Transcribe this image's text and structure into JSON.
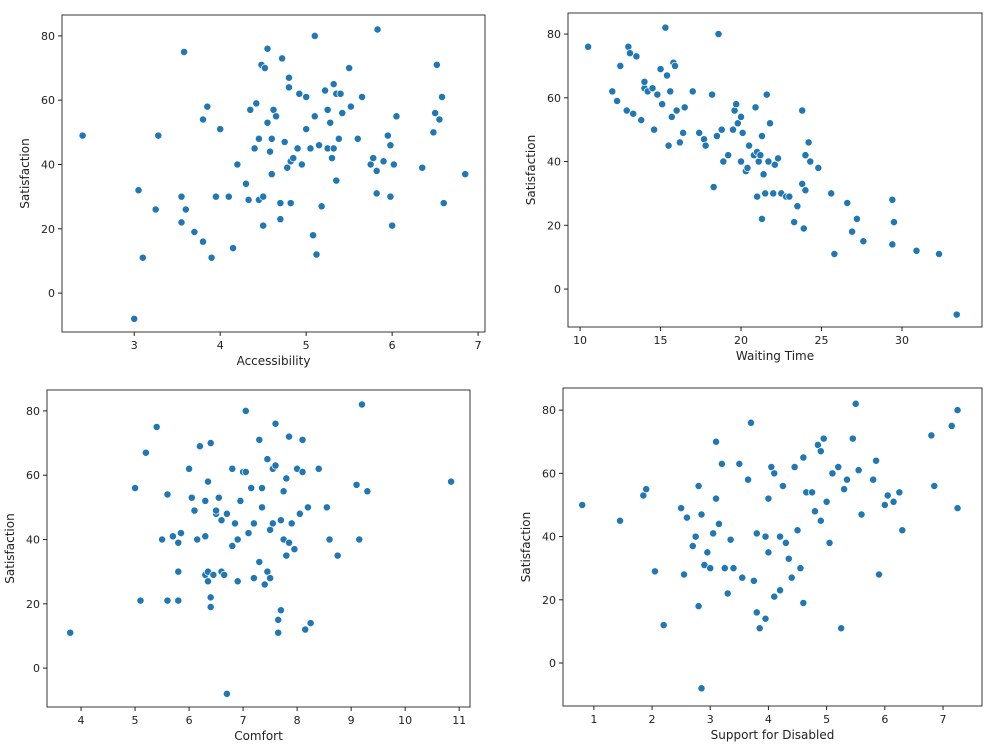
{
  "chart_data": [
    {
      "type": "scatter",
      "xlabel": "Accessibility",
      "ylabel": "Satisfaction",
      "color": "#1f77b4",
      "xlim": [
        2.16,
        7.08
      ],
      "ylim": [
        -12.1,
        86.5
      ],
      "xticks": [
        3,
        4,
        5,
        6,
        7
      ],
      "yticks": [
        0,
        20,
        40,
        60,
        80
      ],
      "x": [
        2.4,
        3.0,
        3.05,
        3.1,
        3.25,
        3.28,
        3.55,
        3.55,
        3.6,
        3.58,
        3.7,
        3.8,
        3.8,
        3.85,
        3.9,
        3.95,
        4.0,
        4.1,
        4.15,
        4.2,
        4.3,
        4.33,
        4.35,
        4.4,
        4.42,
        4.45,
        4.45,
        4.48,
        4.5,
        4.5,
        4.52,
        4.55,
        4.55,
        4.58,
        4.6,
        4.6,
        4.62,
        4.65,
        4.7,
        4.7,
        4.72,
        4.75,
        4.78,
        4.8,
        4.8,
        4.82,
        4.82,
        4.85,
        4.9,
        4.92,
        4.95,
        5.0,
        5.0,
        5.05,
        5.08,
        5.1,
        5.1,
        5.12,
        5.15,
        5.18,
        5.22,
        5.25,
        5.25,
        5.28,
        5.3,
        5.32,
        5.32,
        5.35,
        5.35,
        5.38,
        5.4,
        5.42,
        5.5,
        5.52,
        5.6,
        5.65,
        5.75,
        5.78,
        5.82,
        5.82,
        5.83,
        5.9,
        5.95,
        5.98,
        5.98,
        6.0,
        6.02,
        6.05,
        6.35,
        6.48,
        6.5,
        6.52,
        6.55,
        6.58,
        6.6,
        6.85
      ],
      "values": [
        49,
        -8,
        32,
        11,
        26,
        49,
        30,
        22,
        26,
        75,
        19,
        16,
        54,
        58,
        11,
        30,
        51,
        30,
        14,
        40,
        34,
        29,
        57,
        45,
        59,
        29,
        48,
        71,
        30,
        21,
        70,
        76,
        53,
        44,
        48,
        37,
        57,
        55,
        23,
        28,
        73,
        47,
        39,
        64,
        67,
        41,
        28,
        42,
        45,
        62,
        40,
        51,
        61,
        45,
        18,
        80,
        55,
        12,
        46,
        27,
        63,
        45,
        57,
        53,
        42,
        45,
        65,
        62,
        35,
        48,
        62,
        56,
        70,
        58,
        48,
        61,
        40,
        42,
        31,
        38,
        82,
        41,
        49,
        46,
        30,
        21,
        40,
        55,
        39,
        50,
        56,
        71,
        54,
        61,
        28,
        37
      ]
    },
    {
      "type": "scatter",
      "xlabel": "Waiting Time",
      "ylabel": "Satisfaction",
      "color": "#1f77b4",
      "xlim": [
        9.25,
        34.97
      ],
      "ylim": [
        -11.9,
        86.6
      ],
      "xticks": [
        10,
        15,
        20,
        25,
        30
      ],
      "yticks": [
        0,
        20,
        40,
        60,
        80
      ],
      "x": [
        10.5,
        12,
        12.3,
        12.5,
        12.9,
        13,
        13.1,
        13.3,
        13.5,
        13.8,
        14,
        14,
        14.2,
        14.5,
        14.6,
        14.8,
        15,
        15.1,
        15.3,
        15.4,
        15.5,
        15.6,
        15.7,
        15.8,
        15.9,
        16,
        16.2,
        16.4,
        16.5,
        17,
        17.4,
        17.7,
        17.8,
        18.2,
        18.3,
        18.5,
        18.6,
        18.8,
        18.9,
        19.2,
        19.5,
        19.6,
        19.7,
        19.8,
        20,
        20,
        20.1,
        20.3,
        20.4,
        20.5,
        20.8,
        20.9,
        21,
        21,
        21.1,
        21.2,
        21.3,
        21.3,
        21.4,
        21.5,
        21.6,
        21.7,
        21.8,
        22,
        22.1,
        22.3,
        22.5,
        22.8,
        23.0,
        23.3,
        23.5,
        23.8,
        23.8,
        23.9,
        24,
        24,
        24.2,
        24.3,
        24.8,
        25.6,
        25.8,
        26.6,
        26.9,
        27.2,
        27.6,
        29.4,
        29.4,
        29.5,
        30.9,
        32.3,
        33.4
      ],
      "values": [
        76,
        62,
        59,
        70,
        56,
        76,
        74,
        55,
        73,
        53,
        63,
        65,
        62,
        63,
        50,
        61,
        69,
        58,
        82,
        67,
        45,
        62,
        54,
        71,
        70,
        56,
        46,
        49,
        57,
        62,
        49,
        47,
        45,
        61,
        32,
        48,
        80,
        50,
        40,
        42,
        50,
        56,
        58,
        52,
        54,
        40,
        49,
        37,
        38,
        45,
        42,
        57,
        29,
        43,
        40,
        42,
        22,
        48,
        36,
        30,
        61,
        40,
        52,
        30,
        39,
        41,
        30,
        29,
        29,
        21,
        26,
        33,
        56,
        19,
        42,
        31,
        46,
        40,
        38,
        30,
        11,
        27,
        18,
        22,
        15,
        28,
        14,
        21,
        12,
        11,
        -8
      ]
    },
    {
      "type": "scatter",
      "xlabel": "Comfort",
      "ylabel": "Satisfaction",
      "color": "#1f77b4",
      "xlim": [
        3.37,
        11.2
      ],
      "ylim": [
        -12.1,
        86.5
      ],
      "xticks": [
        4,
        5,
        6,
        7,
        8,
        9,
        10,
        11
      ],
      "yticks": [
        0,
        20,
        40,
        60,
        80
      ],
      "x": [
        3.8,
        5.0,
        5.1,
        5.2,
        5.4,
        5.5,
        5.6,
        5.6,
        5.7,
        5.8,
        5.8,
        5.8,
        5.85,
        6.0,
        6.05,
        6.1,
        6.15,
        6.2,
        6.3,
        6.3,
        6.3,
        6.35,
        6.35,
        6.35,
        6.4,
        6.4,
        6.4,
        6.45,
        6.5,
        6.5,
        6.55,
        6.6,
        6.6,
        6.65,
        6.7,
        6.7,
        6.8,
        6.8,
        6.85,
        6.9,
        6.9,
        6.95,
        7.0,
        7.05,
        7.05,
        7.1,
        7.15,
        7.2,
        7.2,
        7.3,
        7.3,
        7.35,
        7.35,
        7.4,
        7.45,
        7.45,
        7.5,
        7.5,
        7.55,
        7.55,
        7.6,
        7.6,
        7.65,
        7.65,
        7.7,
        7.7,
        7.75,
        7.75,
        7.8,
        7.8,
        7.85,
        7.85,
        7.9,
        7.95,
        8.0,
        8.05,
        8.1,
        8.1,
        8.15,
        8.2,
        8.25,
        8.4,
        8.55,
        8.6,
        8.75,
        9.1,
        9.15,
        9.2,
        9.3,
        10.85
      ],
      "values": [
        11,
        56,
        21,
        67,
        75,
        40,
        21,
        54,
        41,
        39,
        30,
        21,
        42,
        62,
        53,
        49,
        40,
        69,
        52,
        41,
        29,
        58,
        30,
        27,
        19,
        70,
        22,
        29,
        48,
        49,
        53,
        30,
        46,
        29,
        -8,
        48,
        62,
        38,
        45,
        27,
        40,
        52,
        61,
        80,
        61,
        42,
        56,
        45,
        28,
        71,
        33,
        50,
        56,
        26,
        65,
        30,
        43,
        28,
        62,
        45,
        76,
        63,
        15,
        11,
        18,
        46,
        55,
        40,
        35,
        59,
        72,
        39,
        45,
        37,
        62,
        48,
        71,
        61,
        12,
        50,
        14,
        62,
        50,
        40,
        35,
        57,
        40,
        82,
        55,
        58
      ]
    },
    {
      "type": "scatter",
      "xlabel": "Support for Disabled",
      "ylabel": "Satisfaction",
      "color": "#1f77b4",
      "xlim": [
        0.47,
        7.67
      ],
      "ylim": [
        -13.6,
        87
      ],
      "xticks": [
        1,
        2,
        3,
        4,
        5,
        6,
        7
      ],
      "yticks": [
        0,
        20,
        40,
        60,
        80
      ],
      "x": [
        0.8,
        1.45,
        1.85,
        1.9,
        2.05,
        2.2,
        2.5,
        2.55,
        2.6,
        2.7,
        2.75,
        2.8,
        2.8,
        2.85,
        2.85,
        2.9,
        2.95,
        3.0,
        3.05,
        3.1,
        3.15,
        3.1,
        3.2,
        3.25,
        3.3,
        3.35,
        3.4,
        3.5,
        3.55,
        3.65,
        3.7,
        3.75,
        3.8,
        3.8,
        3.85,
        3.95,
        3.95,
        4.0,
        4.0,
        4.05,
        4.1,
        4.1,
        4.2,
        4.2,
        4.25,
        4.3,
        4.35,
        4.4,
        4.45,
        4.5,
        4.55,
        4.6,
        4.6,
        4.65,
        4.75,
        4.8,
        4.85,
        4.9,
        4.9,
        4.95,
        5.0,
        5.05,
        5.1,
        5.2,
        5.25,
        5.3,
        5.35,
        5.45,
        5.5,
        5.55,
        5.6,
        5.8,
        5.85,
        5.9,
        6.0,
        6.05,
        6.15,
        6.25,
        6.3,
        6.8,
        6.85,
        7.15,
        7.25,
        7.25
      ],
      "values": [
        50,
        45,
        53,
        55,
        29,
        12,
        49,
        28,
        46,
        37,
        40,
        18,
        56,
        -8,
        47,
        31,
        35,
        30,
        41,
        52,
        44,
        70,
        63,
        30,
        22,
        39,
        30,
        63,
        27,
        58,
        76,
        26,
        16,
        41,
        11,
        14,
        40,
        52,
        35,
        62,
        21,
        60,
        23,
        40,
        56,
        38,
        33,
        27,
        62,
        42,
        30,
        65,
        19,
        54,
        54,
        48,
        69,
        67,
        45,
        71,
        51,
        38,
        60,
        62,
        11,
        55,
        58,
        71,
        82,
        61,
        47,
        58,
        64,
        28,
        50,
        53,
        51,
        54,
        42,
        72,
        56,
        75,
        49,
        80
      ]
    }
  ]
}
